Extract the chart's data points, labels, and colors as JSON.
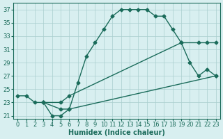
{
  "line1_x": [
    0,
    1,
    2,
    3,
    4,
    5,
    6,
    7,
    8,
    9,
    10,
    11,
    12,
    13,
    14,
    15,
    16,
    17,
    18,
    19,
    20,
    21,
    22,
    23
  ],
  "line1_y": [
    24,
    24,
    23,
    23,
    21,
    21,
    22,
    26,
    30,
    32,
    34,
    36,
    37,
    37,
    37,
    37,
    36,
    36,
    34,
    32,
    29,
    27,
    28,
    27
  ],
  "line2_x": [
    3,
    5,
    6,
    19,
    21,
    22,
    23
  ],
  "line2_y": [
    23,
    23,
    24,
    32,
    32,
    32,
    32
  ],
  "line3_x": [
    3,
    5,
    6,
    23
  ],
  "line3_y": [
    23,
    22,
    22,
    27
  ],
  "line_color": "#1a6b5a",
  "bg_color": "#d8eff0",
  "grid_color": "#aacece",
  "xlabel": "Humidex (Indice chaleur)",
  "ylabel_ticks": [
    21,
    23,
    25,
    27,
    29,
    31,
    33,
    35,
    37
  ],
  "xlim": [
    -0.5,
    23.5
  ],
  "ylim": [
    20.5,
    38
  ],
  "xticks": [
    0,
    1,
    2,
    3,
    4,
    5,
    6,
    7,
    8,
    9,
    10,
    11,
    12,
    13,
    14,
    15,
    16,
    17,
    18,
    19,
    20,
    21,
    22,
    23
  ],
  "marker_main": "D",
  "marker_diag": "D",
  "markersize": 2.5,
  "linewidth": 1.0,
  "xlabel_fontsize": 7,
  "tick_fontsize": 6
}
